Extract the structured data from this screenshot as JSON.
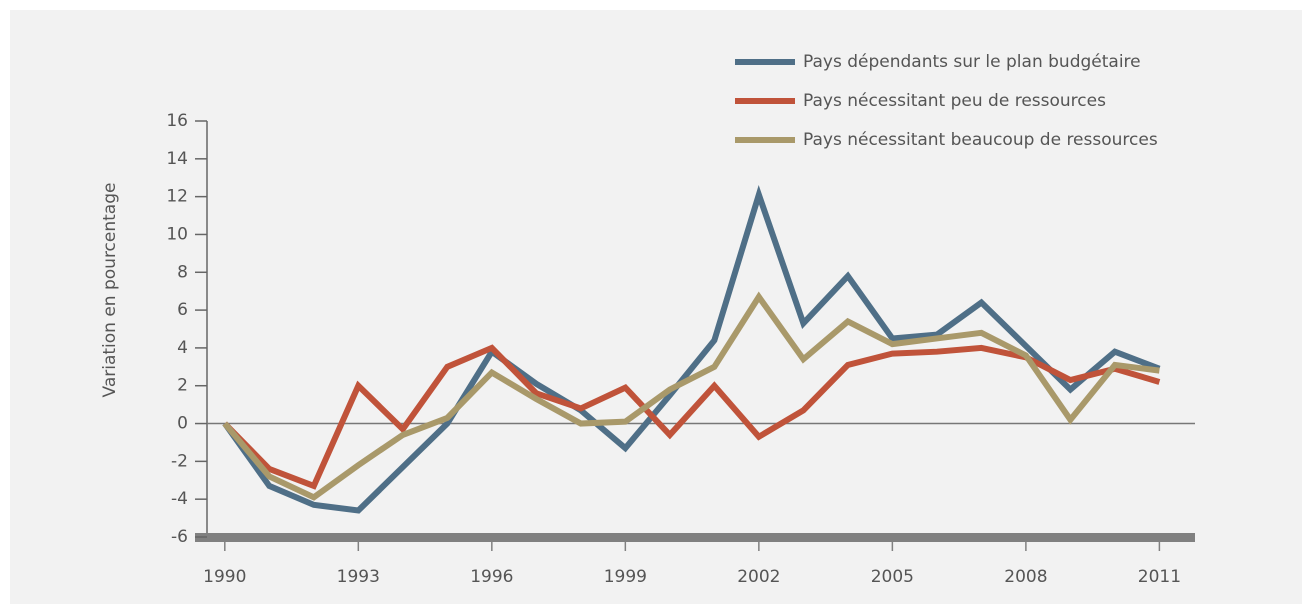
{
  "chart_data": {
    "type": "line",
    "y_label": "Variation en pourcentage",
    "x": [
      1990,
      1991,
      1992,
      1993,
      1994,
      1995,
      1996,
      1997,
      1998,
      1999,
      2000,
      2001,
      2002,
      2003,
      2004,
      2005,
      2006,
      2007,
      2008,
      2009,
      2010,
      2011
    ],
    "series": [
      {
        "name": "Pays dépendants sur le plan budgétaire",
        "color": "#4f6f87",
        "values": [
          0,
          -3.3,
          -4.3,
          -4.6,
          -2.3,
          0,
          3.8,
          2.1,
          0.7,
          -1.3,
          1.5,
          4.4,
          12.1,
          5.3,
          7.8,
          4.5,
          4.7,
          6.4,
          4.1,
          1.8,
          3.8,
          2.9
        ]
      },
      {
        "name": "Pays nécessitant peu de ressources",
        "color": "#c0533a",
        "values": [
          0,
          -2.4,
          -3.3,
          2.0,
          -0.3,
          3.0,
          4.0,
          1.6,
          0.8,
          1.9,
          -0.6,
          2.0,
          -0.7,
          0.7,
          3.1,
          3.7,
          3.8,
          4.0,
          3.5,
          2.3,
          2.9,
          2.2
        ]
      },
      {
        "name": "Pays nécessitant beaucoup de ressources",
        "color": "#a9996a",
        "values": [
          0,
          -2.8,
          -3.9,
          -2.2,
          -0.6,
          0.3,
          2.7,
          1.3,
          0,
          0.1,
          1.8,
          3.0,
          6.7,
          3.4,
          5.4,
          4.2,
          4.5,
          4.8,
          3.6,
          0.2,
          3.1,
          2.8
        ]
      }
    ],
    "xlim": [
      1989.6,
      2011.8
    ],
    "xticks": [
      1990,
      1993,
      1996,
      1999,
      2002,
      2005,
      2008,
      2011
    ],
    "ylim": [
      -6,
      16
    ],
    "yticks": [
      -6,
      -4,
      -2,
      0,
      2,
      4,
      6,
      8,
      10,
      12,
      14,
      16
    ],
    "legend": "upper right"
  }
}
